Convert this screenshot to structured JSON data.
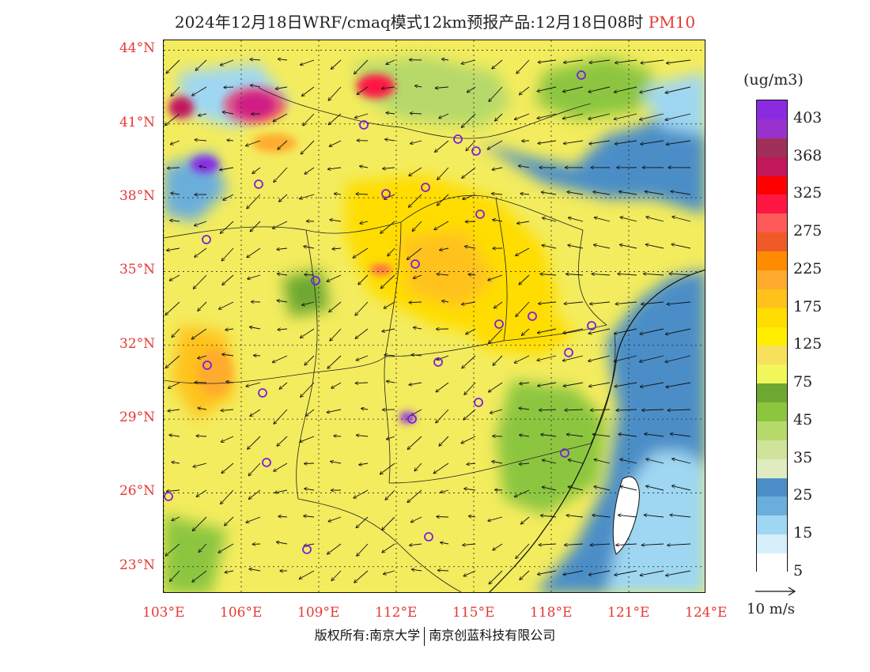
{
  "title": {
    "text": "2024年12月18日WRF/cmaq模式12km预报产品:12月18日08时",
    "pollutant": "PM10"
  },
  "map": {
    "lat_labels": [
      "44°N",
      "41°N",
      "38°N",
      "35°N",
      "32°N",
      "29°N",
      "26°N",
      "23°N"
    ],
    "lon_labels": [
      "103°E",
      "106°E",
      "109°E",
      "112°E",
      "115°E",
      "118°E",
      "121°E",
      "124°E"
    ],
    "lat_values": [
      44,
      41,
      38,
      35,
      32,
      29,
      26,
      23
    ],
    "lon_values": [
      103,
      106,
      109,
      112,
      115,
      118,
      121,
      124
    ],
    "extent": {
      "lon_min": 103,
      "lon_max": 124,
      "lat_min": 21.9,
      "lat_max": 44.4
    }
  },
  "legend": {
    "unit": "(ug/m3)",
    "labels": [
      "403",
      "368",
      "325",
      "275",
      "225",
      "175",
      "125",
      "75",
      "45",
      "35",
      "25",
      "15",
      "5"
    ],
    "colors": [
      "#8a2be2",
      "#9932cc",
      "#a0305a",
      "#c2185b",
      "#ff0000",
      "#ff1744",
      "#ff5a5a",
      "#f05a28",
      "#ff8c00",
      "#ffab2e",
      "#ffc21a",
      "#ffdd00",
      "#ffee00",
      "#f7e15c",
      "#f1f75a",
      "#6da832",
      "#8cc63f",
      "#b6d96b",
      "#cfe39a",
      "#e0ecc0",
      "#4c8ec7",
      "#6aaedc",
      "#9fd7f2",
      "#d6effa",
      "#ffffff"
    ]
  },
  "wind_scale": {
    "label": "10 m/s"
  },
  "footer": {
    "left": "版权所有:南京大学",
    "right": "南京创蓝科技有限公司"
  }
}
